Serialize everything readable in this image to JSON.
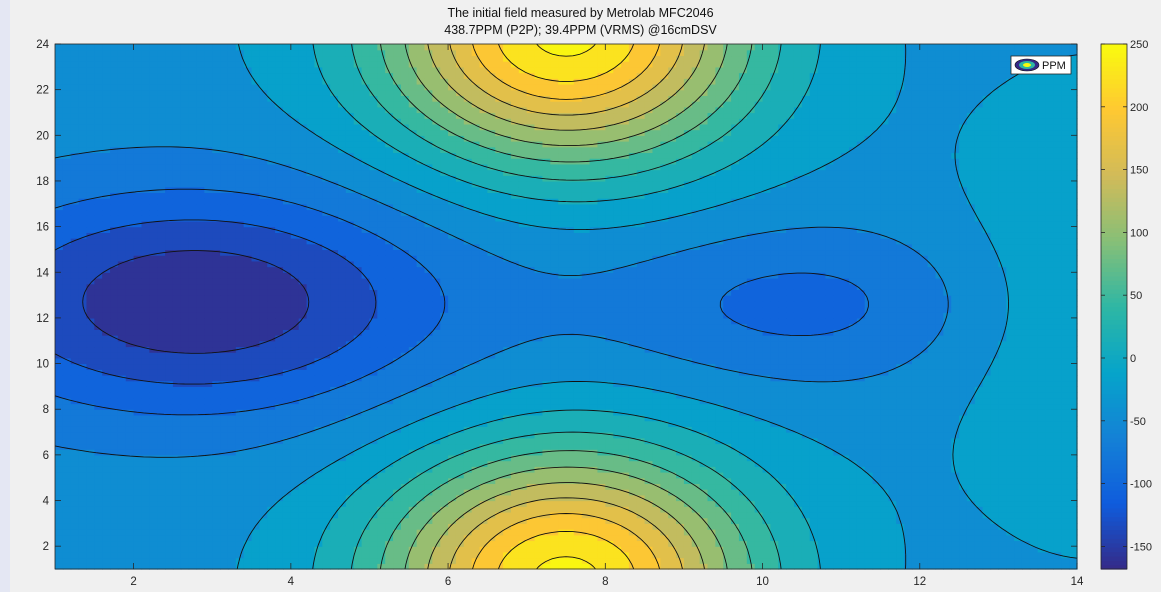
{
  "chart_data": {
    "type": "contour",
    "title": "The initial field measured by Metrolab MFC2046",
    "subtitle": "438.7PPM (P2P); 39.4PPM (VRMS) @16cmDSV",
    "xlim": [
      1,
      14
    ],
    "ylim": [
      1,
      24
    ],
    "x_ticks": [
      2,
      4,
      6,
      8,
      10,
      12,
      14
    ],
    "y_ticks": [
      2,
      4,
      6,
      8,
      10,
      12,
      14,
      16,
      18,
      20,
      22,
      24
    ],
    "colorbar": {
      "range": [
        -168,
        250
      ],
      "ticks": [
        250,
        200,
        150,
        100,
        50,
        0,
        -50,
        -100,
        -150
      ],
      "colormap": "parula"
    },
    "legend": {
      "label": "PPM",
      "position": "top-right"
    },
    "grid": false,
    "contour_levels": [
      -150,
      -120,
      -90,
      -60,
      -30,
      0,
      30,
      60,
      90,
      120,
      150,
      180,
      210,
      240
    ],
    "field_summary": {
      "max_top": {
        "x": 7.5,
        "y": 24,
        "value": 250
      },
      "max_bottom": {
        "x": 7.5,
        "y": 1,
        "value": 250
      },
      "min_left": {
        "x": 2.8,
        "y": 12.7,
        "value": -168
      },
      "min_right": {
        "x": 10.5,
        "y": 12.6,
        "value": -95
      },
      "saddle": {
        "x": 7.4,
        "y": 12,
        "value": -40
      }
    }
  },
  "colors": {
    "parula": [
      "#352a87",
      "#0f5cdd",
      "#1481d6",
      "#06a4ca",
      "#2eb7a4",
      "#87bf77",
      "#d1bb59",
      "#fec832",
      "#f9fb0e"
    ]
  }
}
